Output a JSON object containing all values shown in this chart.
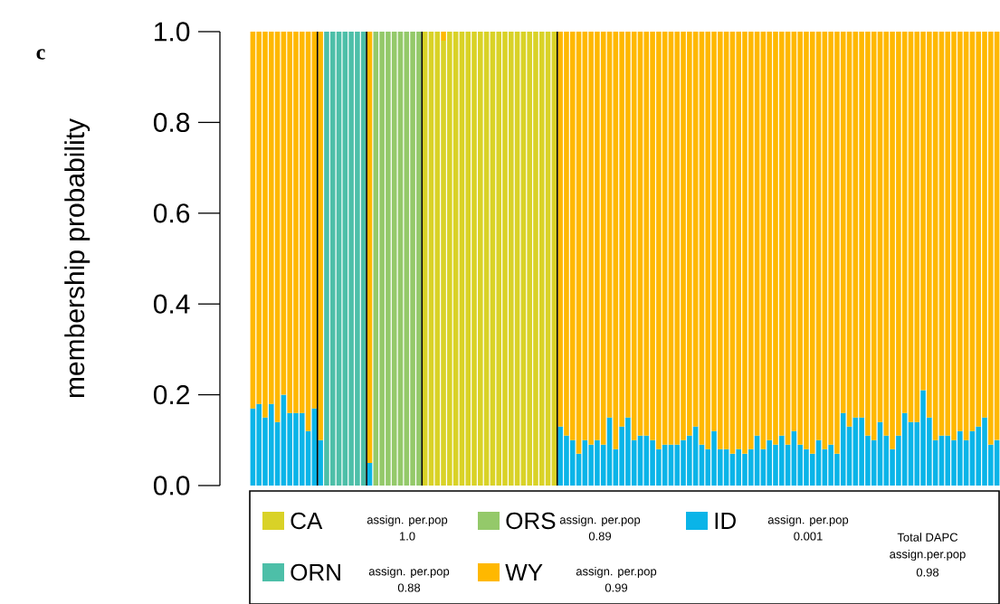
{
  "chart_data": {
    "type": "bar",
    "stacked": true,
    "categories": [
      null,
      null,
      null,
      null,
      null,
      null,
      null,
      null,
      null,
      null,
      null,
      null,
      null,
      null,
      null,
      null,
      null,
      null,
      null,
      null,
      null,
      null,
      null,
      null,
      null,
      null,
      null,
      null,
      null,
      null,
      null,
      null,
      null,
      null,
      null,
      null,
      null,
      null,
      null,
      null,
      null,
      null,
      null,
      null,
      null,
      null,
      null,
      null,
      null,
      null,
      null,
      null,
      null,
      null,
      null,
      null,
      null,
      null,
      null,
      null,
      null,
      null,
      null,
      null,
      null,
      null,
      null,
      null,
      null,
      null,
      null,
      null,
      null,
      null,
      null,
      null,
      null,
      null,
      null,
      null,
      null,
      null,
      null,
      null,
      null,
      null,
      null,
      null,
      null,
      null,
      null,
      null,
      null,
      null,
      null,
      null,
      null,
      null,
      null,
      null,
      null,
      null,
      null,
      null,
      null,
      null,
      null,
      null,
      null,
      null,
      null,
      null,
      null,
      null,
      null,
      null,
      null,
      null,
      null,
      null,
      null,
      null
    ],
    "series": [
      {
        "name": "ID",
        "color": "#0ab4e8",
        "values": [
          0.17,
          0.18,
          0.15,
          0.18,
          0.14,
          0.2,
          0.16,
          0.16,
          0.16,
          0.12,
          0.17,
          0.1,
          0,
          0,
          0,
          0,
          0,
          0,
          0,
          0.05,
          0,
          0,
          0,
          0,
          0,
          0,
          0,
          0,
          0,
          0,
          0,
          0,
          0,
          0,
          0,
          0,
          0,
          0,
          0,
          0,
          0,
          0,
          0,
          0,
          0,
          0,
          0,
          0,
          0,
          0,
          0.13,
          0.11,
          0.1,
          0.07,
          0.1,
          0.09,
          0.1,
          0.09,
          0.15,
          0.08,
          0.13,
          0.15,
          0.1,
          0.11,
          0.11,
          0.1,
          0.08,
          0.09,
          0.09,
          0.09,
          0.1,
          0.11,
          0.13,
          0.09,
          0.08,
          0.12,
          0.08,
          0.08,
          0.07,
          0.08,
          0.07,
          0.08,
          0.11,
          0.08,
          0.1,
          0.09,
          0.11,
          0.09,
          0.12,
          0.09,
          0.08,
          0.07,
          0.1,
          0.08,
          0.09,
          0.07,
          0.16,
          0.13,
          0.15,
          0.15,
          0.11,
          0.1,
          0.14,
          0.11,
          0.08,
          0.11,
          0.16,
          0.14,
          0.14,
          0.21,
          0.15,
          0.1,
          0.11,
          0.11,
          0.1,
          0.12,
          0.1,
          0.12,
          0.13,
          0.15,
          0.09,
          0.1
        ]
      },
      {
        "name": "ORN",
        "color": "#4dbfa8",
        "values": [
          0,
          0,
          0,
          0,
          0,
          0,
          0,
          0,
          0,
          0,
          0,
          0,
          1,
          1,
          1,
          1,
          1,
          1,
          1,
          0,
          0,
          0,
          0,
          0,
          0,
          0,
          0,
          0,
          0,
          0,
          0,
          0,
          0,
          0,
          0,
          0,
          0,
          0,
          0,
          0,
          0,
          0,
          0,
          0,
          0,
          0,
          0,
          0,
          0,
          0,
          0,
          0,
          0,
          0,
          0,
          0,
          0,
          0,
          0,
          0,
          0,
          0,
          0,
          0,
          0,
          0,
          0,
          0,
          0,
          0,
          0,
          0,
          0,
          0,
          0,
          0,
          0,
          0,
          0,
          0,
          0,
          0,
          0,
          0,
          0,
          0,
          0,
          0,
          0,
          0,
          0,
          0,
          0,
          0,
          0,
          0,
          0,
          0,
          0,
          0,
          0,
          0,
          0,
          0,
          0,
          0,
          0,
          0,
          0,
          0,
          0,
          0,
          0,
          0,
          0,
          0,
          0,
          0,
          0,
          0,
          0,
          0
        ]
      },
      {
        "name": "ORS",
        "color": "#94c96a",
        "values": [
          0,
          0,
          0,
          0,
          0,
          0,
          0,
          0,
          0,
          0,
          0,
          0,
          0,
          0,
          0,
          0,
          0,
          0,
          0,
          0,
          1,
          1,
          1,
          1,
          1,
          1,
          1,
          1,
          0,
          0,
          0,
          0,
          0,
          0,
          0,
          0,
          0,
          0,
          0,
          0,
          0,
          0,
          0,
          0,
          0,
          0,
          0,
          0,
          0,
          0,
          0,
          0,
          0,
          0,
          0,
          0,
          0,
          0,
          0,
          0,
          0,
          0,
          0,
          0,
          0,
          0,
          0,
          0,
          0,
          0,
          0,
          0,
          0,
          0,
          0,
          0,
          0,
          0,
          0,
          0,
          0,
          0,
          0,
          0,
          0,
          0,
          0,
          0,
          0,
          0,
          0,
          0,
          0,
          0,
          0,
          0,
          0,
          0,
          0,
          0,
          0,
          0,
          0,
          0,
          0,
          0,
          0,
          0,
          0,
          0,
          0,
          0,
          0,
          0,
          0,
          0,
          0,
          0,
          0,
          0,
          0,
          0
        ]
      },
      {
        "name": "CA",
        "color": "#d9d227",
        "values": [
          0,
          0,
          0,
          0,
          0,
          0,
          0,
          0,
          0,
          0,
          0,
          0,
          0,
          0,
          0,
          0,
          0,
          0,
          0,
          0,
          0,
          0,
          0,
          0,
          0,
          0,
          0,
          0,
          1,
          1,
          1,
          0.98,
          1,
          1,
          1,
          1,
          1,
          1,
          1,
          1,
          1,
          1,
          1,
          1,
          1,
          1,
          1,
          1,
          1,
          1,
          0,
          0,
          0,
          0,
          0,
          0,
          0,
          0,
          0,
          0,
          0,
          0,
          0,
          0,
          0,
          0,
          0,
          0,
          0,
          0,
          0,
          0,
          0,
          0,
          0,
          0,
          0,
          0,
          0,
          0,
          0,
          0,
          0,
          0,
          0,
          0,
          0,
          0,
          0,
          0,
          0,
          0,
          0,
          0,
          0,
          0,
          0,
          0,
          0,
          0,
          0,
          0,
          0,
          0,
          0,
          0,
          0,
          0,
          0,
          0,
          0,
          0,
          0,
          0,
          0,
          0,
          0,
          0,
          0,
          0,
          0,
          0
        ]
      },
      {
        "name": "WY",
        "color": "#ffb800",
        "values": [
          0.83,
          0.82,
          0.85,
          0.82,
          0.86,
          0.8,
          0.84,
          0.84,
          0.84,
          0.88,
          0.83,
          0.9,
          0,
          0,
          0,
          0,
          0,
          0,
          0,
          0.95,
          0,
          0,
          0,
          0,
          0,
          0,
          0,
          0,
          0,
          0,
          0,
          0.02,
          0,
          0,
          0,
          0,
          0,
          0,
          0,
          0,
          0,
          0,
          0,
          0,
          0,
          0,
          0,
          0,
          0,
          0,
          0.87,
          0.89,
          0.9,
          0.93,
          0.9,
          0.91,
          0.9,
          0.91,
          0.85,
          0.92,
          0.87,
          0.85,
          0.9,
          0.89,
          0.89,
          0.9,
          0.92,
          0.91,
          0.91,
          0.91,
          0.9,
          0.89,
          0.87,
          0.91,
          0.92,
          0.88,
          0.92,
          0.92,
          0.93,
          0.92,
          0.93,
          0.92,
          0.89,
          0.92,
          0.9,
          0.91,
          0.89,
          0.91,
          0.88,
          0.91,
          0.92,
          0.93,
          0.9,
          0.92,
          0.91,
          0.93,
          0.84,
          0.87,
          0.85,
          0.85,
          0.89,
          0.9,
          0.86,
          0.89,
          0.92,
          0.89,
          0.84,
          0.86,
          0.86,
          0.79,
          0.85,
          0.9,
          0.89,
          0.89,
          0.9,
          0.88,
          0.9,
          0.88,
          0.87,
          0.85,
          0.91,
          0.9
        ]
      }
    ],
    "ylabel": "membership probability",
    "ylim": [
      0,
      1
    ],
    "yticks": [
      {
        "value": 0,
        "label": "0.0"
      },
      0.2,
      0.4,
      0.6,
      0.8,
      {
        "value": 1,
        "label": "1.0"
      }
    ],
    "legend": "bottom",
    "annotations": [
      "c",
      "assign. per.pop",
      "1.0",
      "assign. per.pop",
      "0.89",
      "assign. per.pop",
      "0.001",
      "assign. per.pop",
      "0.88",
      "assign. per.pop",
      "0.99",
      "Total DAPC",
      "assign.per.pop",
      "0.98"
    ]
  }
}
